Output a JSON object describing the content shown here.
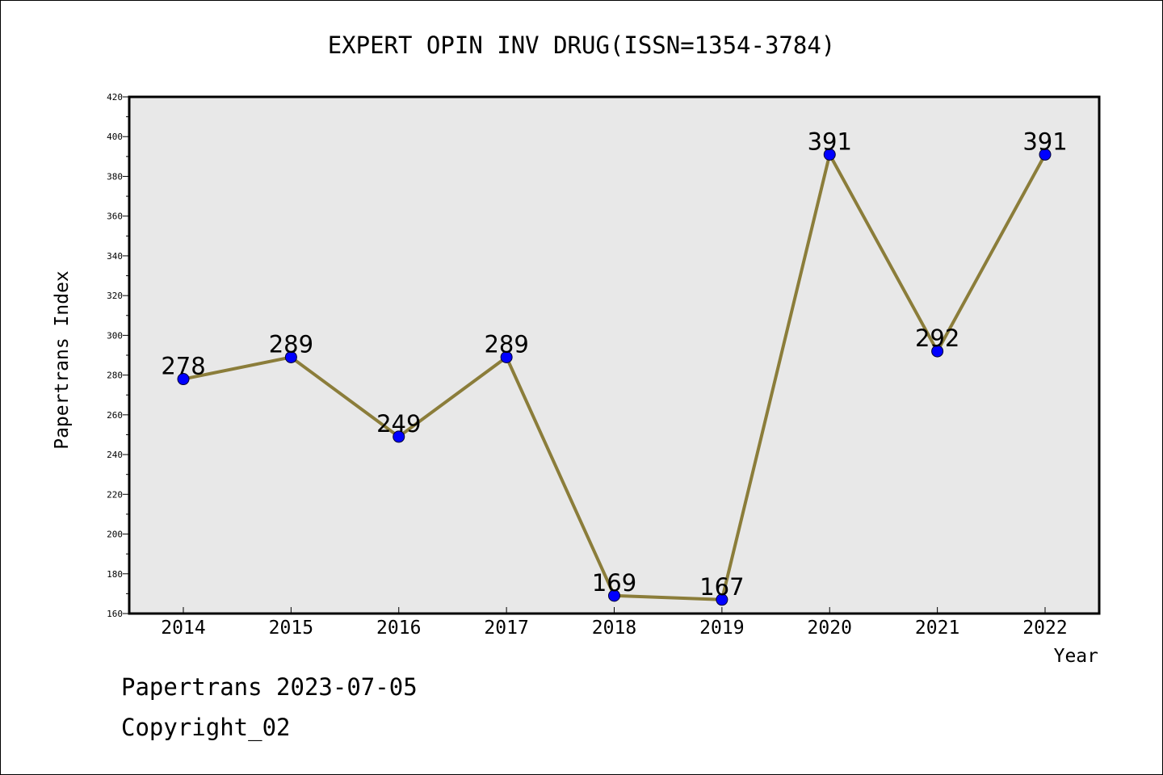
{
  "chart_data": {
    "type": "line",
    "title": "EXPERT OPIN INV DRUG(ISSN=1354-3784)",
    "xlabel": "Year",
    "ylabel": "Papertrans Index",
    "categories": [
      "2014",
      "2015",
      "2016",
      "2017",
      "2018",
      "2019",
      "2020",
      "2021",
      "2022"
    ],
    "values": [
      278,
      289,
      249,
      289,
      169,
      167,
      391,
      292,
      391
    ],
    "data_labels": [
      "278",
      "289",
      "249",
      "289",
      "169",
      "167",
      "391",
      "292",
      "391"
    ],
    "ylim": [
      160,
      420
    ],
    "yticks": [
      "160",
      "180",
      "200",
      "220",
      "240",
      "260",
      "280",
      "300",
      "320",
      "340",
      "360",
      "380",
      "400",
      "420"
    ],
    "grid": false,
    "line_color": "#8B7D3A",
    "marker_color": "#0000FF",
    "plot_background": "#E8E8E8"
  },
  "footer": {
    "date_line": "Papertrans 2023-07-05",
    "copyright_line": "Copyright_02"
  }
}
